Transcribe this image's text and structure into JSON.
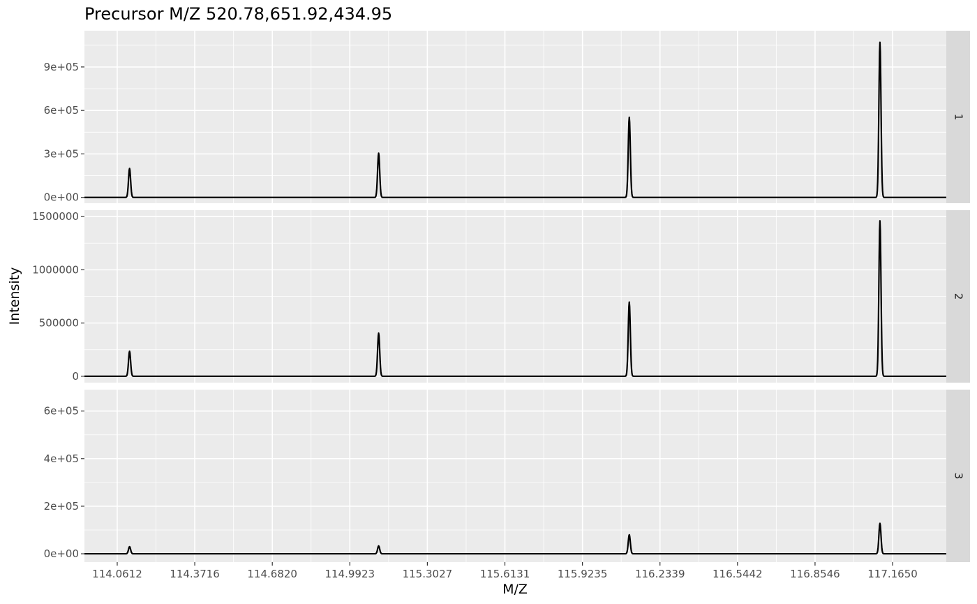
{
  "chart_data": {
    "type": "line",
    "title": "Precursor M/Z 520.78,651.92,434.95",
    "xlabel": "M/Z",
    "ylabel": "Intensity",
    "xlim": [
      113.93,
      117.38
    ],
    "x_ticks": [
      114.0612,
      114.3716,
      114.682,
      114.9923,
      115.3027,
      115.6131,
      115.9235,
      116.2339,
      116.5442,
      116.8546,
      117.165
    ],
    "x_tick_labels": [
      "114.0612",
      "114.3716",
      "114.6820",
      "114.9923",
      "115.3027",
      "115.6131",
      "115.9235",
      "116.2339",
      "116.5442",
      "116.8546",
      "117.1650"
    ],
    "grid": true,
    "facets": [
      {
        "strip": "1",
        "ylim": [
          -40000,
          1150000
        ],
        "y_ticks": [
          0,
          300000,
          600000,
          900000
        ],
        "y_tick_labels": [
          "0e+00",
          "3e+05",
          "6e+05",
          "9e+05"
        ],
        "peaks": [
          {
            "mz": 114.1106,
            "intensity": 200000
          },
          {
            "mz": 115.1077,
            "intensity": 305000
          },
          {
            "mz": 116.111,
            "intensity": 553000
          },
          {
            "mz": 117.1144,
            "intensity": 1070000
          }
        ]
      },
      {
        "strip": "2",
        "ylim": [
          -60000,
          1560000
        ],
        "y_ticks": [
          0,
          500000,
          1000000,
          1500000
        ],
        "y_tick_labels": [
          "0",
          "500000",
          "1000000",
          "1500000"
        ],
        "peaks": [
          {
            "mz": 114.1106,
            "intensity": 235000
          },
          {
            "mz": 115.1077,
            "intensity": 405000
          },
          {
            "mz": 116.111,
            "intensity": 697000
          },
          {
            "mz": 117.1144,
            "intensity": 1460000
          }
        ]
      },
      {
        "strip": "3",
        "ylim": [
          -35000,
          690000
        ],
        "y_ticks": [
          0,
          200000,
          400000,
          600000
        ],
        "y_tick_labels": [
          "0e+00",
          "2e+05",
          "4e+05",
          "6e+05"
        ],
        "peaks": [
          {
            "mz": 114.1106,
            "intensity": 30000
          },
          {
            "mz": 115.1077,
            "intensity": 33000
          },
          {
            "mz": 116.111,
            "intensity": 80000
          },
          {
            "mz": 117.1144,
            "intensity": 128000
          }
        ]
      }
    ]
  }
}
